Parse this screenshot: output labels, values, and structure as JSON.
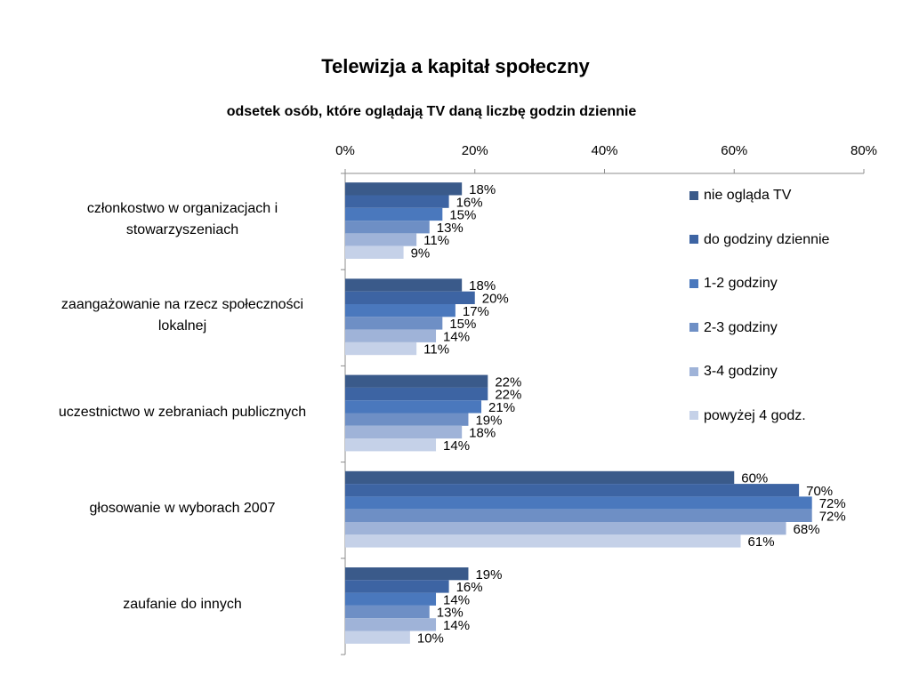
{
  "chart_data": {
    "type": "bar",
    "orientation": "horizontal",
    "title": "Telewizja a kapitał społeczny",
    "subtitle": "odsetek osób, które oglądają TV daną liczbę godzin dziennie",
    "categories": [
      "członkostwo w organizacjach i stowarzyszeniach",
      "zaangażowanie na rzecz społeczności lokalnej",
      "uczestnictwo w zebraniach publicznych",
      "głosowanie w wyborach 2007",
      "zaufanie do innych"
    ],
    "x_ticks": [
      "0%",
      "20%",
      "40%",
      "60%",
      "80%"
    ],
    "xlim": [
      0,
      80
    ],
    "legend_position": "right",
    "series": [
      {
        "name": "nie ogląda TV",
        "color": "#3a5a8a",
        "values": [
          18,
          18,
          22,
          60,
          19
        ]
      },
      {
        "name": "do godziny dziennie",
        "color": "#3d64a3",
        "values": [
          16,
          20,
          22,
          70,
          16
        ]
      },
      {
        "name": "1-2 godziny",
        "color": "#4a78bd",
        "values": [
          15,
          17,
          21,
          72,
          14
        ]
      },
      {
        "name": "2-3 godziny",
        "color": "#6e8fc5",
        "values": [
          13,
          15,
          19,
          72,
          13
        ]
      },
      {
        "name": "3-4 godziny",
        "color": "#9fb3d8",
        "values": [
          11,
          14,
          18,
          68,
          14
        ]
      },
      {
        "name": "powyżej 4 godz.",
        "color": "#c5d1e8",
        "values": [
          9,
          11,
          14,
          61,
          10
        ]
      }
    ]
  }
}
